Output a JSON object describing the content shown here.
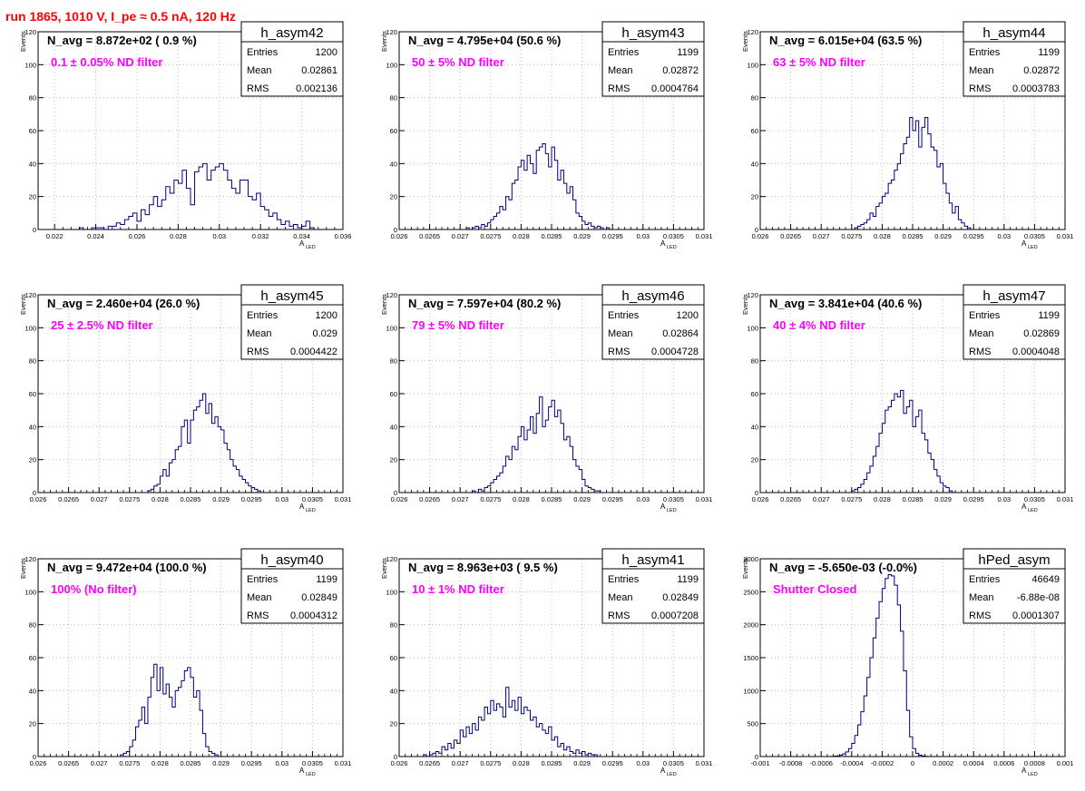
{
  "title": "run 1865,  1010 V, I_pe ≈ 0.5 nA, 120 Hz",
  "colors": {
    "histogram": "#000080",
    "annotation": "#ff00ff",
    "title": "#ff0000",
    "grid": "#bbbbbb"
  },
  "axis_labels": {
    "y": "Events",
    "x_main": "A",
    "x_sub": "LED"
  },
  "stats_labels": {
    "entries": "Entries",
    "mean": "Mean",
    "rms": "RMS"
  },
  "chart_data": [
    {
      "type": "bar",
      "name": "h_asym42",
      "navg": "N_avg = 8.872e+02 ( 0.9 %)",
      "filter": "0.1 ± 0.05% ND filter",
      "entries": "1200",
      "mean": "0.02861",
      "rms": "0.002136",
      "xlim": [
        0.0212,
        0.036
      ],
      "ylim": [
        0,
        120
      ],
      "xticks": [
        "0.022",
        "0.024",
        "0.026",
        "0.028",
        "0.03",
        "0.032",
        "0.034",
        "0.036"
      ],
      "yticks": [
        "0",
        "20",
        "40",
        "60",
        "80",
        "100",
        "120"
      ],
      "xtick_values": [
        0.022,
        0.024,
        0.026,
        0.028,
        0.03,
        0.032,
        0.034,
        0.036
      ],
      "x_start": 0.0232,
      "x_step": 0.0002,
      "values": [
        1,
        0,
        0,
        1,
        1,
        1,
        0,
        2,
        2,
        4,
        3,
        6,
        8,
        10,
        5,
        12,
        9,
        15,
        20,
        14,
        18,
        26,
        22,
        30,
        28,
        36,
        25,
        15,
        35,
        38,
        40,
        30,
        36,
        38,
        40,
        36,
        30,
        25,
        22,
        30,
        30,
        20,
        18,
        22,
        14,
        12,
        8,
        10,
        6,
        3,
        5,
        2,
        3,
        1,
        2,
        5,
        1
      ]
    },
    {
      "type": "bar",
      "name": "h_asym43",
      "navg": "N_avg = 4.795e+04 (50.6 %)",
      "filter": "50 ± 5% ND filter",
      "entries": "1199",
      "mean": "0.02872",
      "rms": "0.0004764",
      "xlim": [
        0.026,
        0.031
      ],
      "ylim": [
        0,
        120
      ],
      "xticks": [
        "0.026",
        "0.0265",
        "0.027",
        "0.0275",
        "0.028",
        "0.0285",
        "0.029",
        "0.0295",
        "0.03",
        "0.0305",
        "0.031"
      ],
      "yticks": [
        "0",
        "20",
        "40",
        "60",
        "80",
        "100",
        "120"
      ],
      "xtick_values": [
        0.026,
        0.0265,
        0.027,
        0.0275,
        0.028,
        0.0285,
        0.029,
        0.0295,
        0.03,
        0.0305,
        0.031
      ],
      "x_start": 0.0271,
      "x_step": 5e-05,
      "values": [
        1,
        0,
        1,
        2,
        1,
        3,
        2,
        4,
        6,
        8,
        10,
        14,
        12,
        20,
        18,
        28,
        30,
        38,
        42,
        36,
        45,
        40,
        34,
        48,
        50,
        52,
        46,
        38,
        50,
        42,
        30,
        36,
        28,
        22,
        26,
        18,
        10,
        8,
        5,
        3,
        4,
        2,
        1,
        2,
        1,
        0,
        1
      ]
    },
    {
      "type": "bar",
      "name": "h_asym44",
      "navg": "N_avg = 6.015e+04 (63.5 %)",
      "filter": "63 ± 5% ND filter",
      "entries": "1199",
      "mean": "0.02872",
      "rms": "0.0003783",
      "xlim": [
        0.026,
        0.031
      ],
      "ylim": [
        0,
        120
      ],
      "xticks": [
        "0.026",
        "0.0265",
        "0.027",
        "0.0275",
        "0.028",
        "0.0285",
        "0.029",
        "0.0295",
        "0.03",
        "0.0305",
        "0.031"
      ],
      "yticks": [
        "0",
        "20",
        "40",
        "60",
        "80",
        "100",
        "120"
      ],
      "xtick_values": [
        0.026,
        0.0265,
        0.027,
        0.0275,
        0.028,
        0.0285,
        0.029,
        0.0295,
        0.03,
        0.0305,
        0.031
      ],
      "x_start": 0.02755,
      "x_step": 5e-05,
      "values": [
        1,
        2,
        3,
        4,
        6,
        10,
        8,
        14,
        16,
        20,
        22,
        28,
        30,
        36,
        40,
        46,
        52,
        56,
        68,
        60,
        66,
        50,
        62,
        68,
        58,
        50,
        48,
        38,
        40,
        28,
        22,
        16,
        10,
        14,
        6,
        4,
        2,
        1
      ]
    },
    {
      "type": "bar",
      "name": "h_asym45",
      "navg": "N_avg = 2.460e+04 (26.0 %)",
      "filter": "25 ± 2.5% ND filter",
      "entries": "1200",
      "mean": "0.029",
      "rms": "0.0004422",
      "xlim": [
        0.026,
        0.031
      ],
      "ylim": [
        0,
        120
      ],
      "xticks": [
        "0.026",
        "0.0265",
        "0.027",
        "0.0275",
        "0.028",
        "0.0285",
        "0.029",
        "0.0295",
        "0.03",
        "0.0305",
        "0.031"
      ],
      "yticks": [
        "0",
        "20",
        "40",
        "60",
        "80",
        "100",
        "120"
      ],
      "xtick_values": [
        0.026,
        0.0265,
        0.027,
        0.0275,
        0.028,
        0.0285,
        0.029,
        0.0295,
        0.03,
        0.0305,
        0.031
      ],
      "x_start": 0.0278,
      "x_step": 5e-05,
      "values": [
        1,
        2,
        4,
        5,
        10,
        14,
        10,
        18,
        20,
        26,
        28,
        40,
        44,
        30,
        44,
        50,
        52,
        56,
        60,
        48,
        54,
        42,
        46,
        40,
        38,
        30,
        26,
        20,
        16,
        14,
        10,
        8,
        6,
        4,
        3,
        2,
        1
      ]
    },
    {
      "type": "bar",
      "name": "h_asym46",
      "navg": "N_avg = 7.597e+04 (80.2 %)",
      "filter": "79 ± 5% ND filter",
      "entries": "1200",
      "mean": "0.02864",
      "rms": "0.0004728",
      "xlim": [
        0.026,
        0.031
      ],
      "ylim": [
        0,
        120
      ],
      "xticks": [
        "0.026",
        "0.0265",
        "0.027",
        "0.0275",
        "0.028",
        "0.0285",
        "0.029",
        "0.0295",
        "0.03",
        "0.0305",
        "0.031"
      ],
      "yticks": [
        "0",
        "20",
        "40",
        "60",
        "80",
        "100",
        "120"
      ],
      "xtick_values": [
        0.026,
        0.0265,
        0.027,
        0.0275,
        0.028,
        0.0285,
        0.029,
        0.0295,
        0.03,
        0.0305,
        0.031
      ],
      "x_start": 0.0272,
      "x_step": 5e-05,
      "values": [
        1,
        0,
        2,
        1,
        3,
        4,
        6,
        8,
        10,
        12,
        16,
        22,
        20,
        28,
        26,
        34,
        40,
        32,
        38,
        46,
        36,
        48,
        58,
        40,
        44,
        52,
        56,
        46,
        50,
        42,
        32,
        34,
        28,
        20,
        16,
        14,
        8,
        4,
        3,
        2,
        1,
        1
      ]
    },
    {
      "type": "bar",
      "name": "h_asym47",
      "navg": "N_avg = 3.841e+04 (40.6 %)",
      "filter": "40 ± 4% ND filter",
      "entries": "1199",
      "mean": "0.02869",
      "rms": "0.0004048",
      "xlim": [
        0.026,
        0.031
      ],
      "ylim": [
        0,
        120
      ],
      "xticks": [
        "0.026",
        "0.0265",
        "0.027",
        "0.0275",
        "0.028",
        "0.0285",
        "0.029",
        "0.0295",
        "0.03",
        "0.0305",
        "0.031"
      ],
      "yticks": [
        "0",
        "20",
        "40",
        "60",
        "80",
        "100",
        "120"
      ],
      "xtick_values": [
        0.026,
        0.0265,
        0.027,
        0.0275,
        0.028,
        0.0285,
        0.029,
        0.0295,
        0.03,
        0.0305,
        0.031
      ],
      "x_start": 0.0275,
      "x_step": 5e-05,
      "values": [
        1,
        2,
        3,
        5,
        8,
        12,
        16,
        22,
        28,
        36,
        42,
        50,
        52,
        56,
        60,
        58,
        62,
        48,
        52,
        56,
        40,
        46,
        50,
        36,
        32,
        24,
        20,
        14,
        10,
        6,
        4,
        3,
        1
      ]
    },
    {
      "type": "bar",
      "name": "h_asym40",
      "navg": "N_avg = 9.472e+04 (100.0 %)",
      "filter": "100% (No filter)",
      "entries": "1199",
      "mean": "0.02849",
      "rms": "0.0004312",
      "xlim": [
        0.026,
        0.031
      ],
      "ylim": [
        0,
        120
      ],
      "xticks": [
        "0.026",
        "0.0265",
        "0.027",
        "0.0275",
        "0.028",
        "0.0285",
        "0.029",
        "0.0295",
        "0.03",
        "0.0305",
        "0.031"
      ],
      "yticks": [
        "0",
        "20",
        "40",
        "60",
        "80",
        "100",
        "120"
      ],
      "xtick_values": [
        0.026,
        0.0265,
        0.027,
        0.0275,
        0.028,
        0.0285,
        0.029,
        0.0295,
        0.03,
        0.0305,
        0.031
      ],
      "x_start": 0.02735,
      "x_step": 5e-05,
      "values": [
        1,
        2,
        3,
        6,
        10,
        18,
        22,
        30,
        20,
        36,
        48,
        56,
        40,
        54,
        38,
        44,
        36,
        30,
        40,
        42,
        46,
        52,
        54,
        48,
        36,
        40,
        28,
        14,
        6,
        3,
        2,
        1
      ]
    },
    {
      "type": "bar",
      "name": "h_asym41",
      "navg": "N_avg = 8.963e+03 ( 9.5 %)",
      "filter": "10 ± 1% ND filter",
      "entries": "1199",
      "mean": "0.02849",
      "rms": "0.0007208",
      "xlim": [
        0.026,
        0.031
      ],
      "ylim": [
        0,
        120
      ],
      "xticks": [
        "0.026",
        "0.0265",
        "0.027",
        "0.0275",
        "0.028",
        "0.0285",
        "0.029",
        "0.0295",
        "0.03",
        "0.0305",
        "0.031"
      ],
      "yticks": [
        "0",
        "20",
        "40",
        "60",
        "80",
        "100",
        "120"
      ],
      "xtick_values": [
        0.026,
        0.0265,
        0.027,
        0.0275,
        0.028,
        0.0285,
        0.029,
        0.0295,
        0.03,
        0.0305,
        0.031
      ],
      "x_start": 0.0264,
      "x_step": 5e-05,
      "values": [
        1,
        0,
        1,
        2,
        3,
        2,
        6,
        4,
        8,
        5,
        10,
        8,
        16,
        12,
        18,
        14,
        20,
        16,
        24,
        22,
        30,
        26,
        34,
        28,
        32,
        30,
        24,
        42,
        30,
        34,
        28,
        36,
        26,
        30,
        28,
        22,
        24,
        18,
        20,
        16,
        14,
        18,
        10,
        12,
        6,
        8,
        4,
        6,
        3,
        2,
        4,
        2,
        3,
        1,
        2,
        1,
        1
      ]
    },
    {
      "type": "bar",
      "name": "hPed_asym",
      "navg": "N_avg = -5.650e-03 (-0.0%)",
      "filter": "Shutter Closed",
      "entries": "46649",
      "mean": "-6.88e-08",
      "rms": "0.0001307",
      "xlim": [
        -0.001,
        0.001
      ],
      "ylim": [
        0,
        3000
      ],
      "xticks": [
        "-0.001",
        "-0.0008",
        "-0.0006",
        "-0.0004",
        "-0.0002",
        "0",
        "0.0002",
        "0.0004",
        "0.0006",
        "0.0008",
        "0.001"
      ],
      "yticks": [
        "0",
        "500",
        "1000",
        "1500",
        "2000",
        "2500",
        "3000"
      ],
      "xtick_values": [
        -0.001,
        -0.0008,
        -0.0006,
        -0.0004,
        -0.0002,
        0,
        0.0002,
        0.0004,
        0.0006,
        0.0008,
        0.001
      ],
      "x_start": -0.00054,
      "x_step": 2e-05,
      "values": [
        2,
        5,
        10,
        20,
        40,
        70,
        120,
        200,
        320,
        480,
        680,
        920,
        1200,
        1500,
        1800,
        2100,
        2350,
        2550,
        2700,
        2760,
        2740,
        2600,
        2300,
        1900,
        1300,
        700,
        300,
        120,
        50,
        20,
        8,
        3
      ]
    }
  ]
}
